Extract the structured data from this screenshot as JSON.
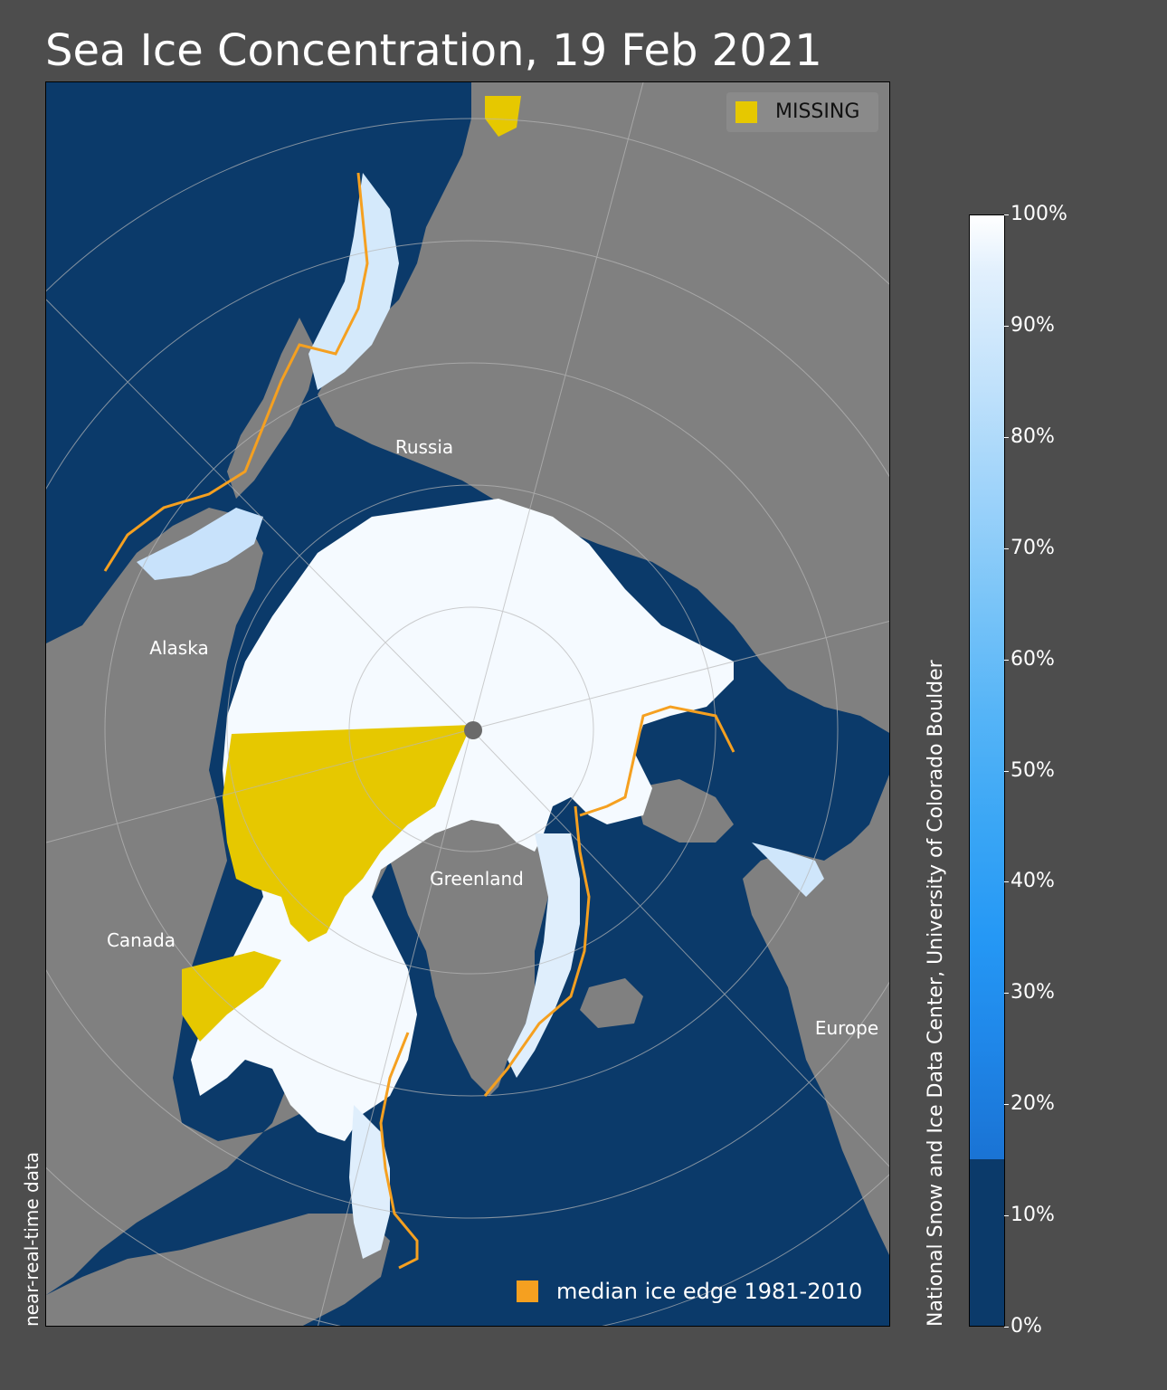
{
  "title": "Sea Ice Concentration, 19 Feb 2021",
  "side_label": "near-real-time data",
  "credit": "National Snow and Ice Data Center, University of Colorado Boulder",
  "regions": [
    {
      "id": "russia",
      "label": "Russia"
    },
    {
      "id": "alaska",
      "label": "Alaska"
    },
    {
      "id": "canada",
      "label": "Canada"
    },
    {
      "id": "greenland",
      "label": "Greenland"
    },
    {
      "id": "europe",
      "label": "Europe"
    }
  ],
  "legend": {
    "missing": {
      "label": "MISSING",
      "color": "#e6c800"
    },
    "median_edge": {
      "label": "median ice edge 1981-2010",
      "color": "#f5a020"
    }
  },
  "colorbar": {
    "ticks": [
      "0%",
      "10%",
      "20%",
      "30%",
      "40%",
      "50%",
      "60%",
      "70%",
      "80%",
      "90%",
      "100%"
    ],
    "min": 0,
    "max": 100,
    "ocean_threshold_percent": 15
  },
  "colors": {
    "background": "#4d4d4d",
    "land": "#808080",
    "ocean": "#0b3a6a",
    "ice": "#f5faff",
    "missing": "#e6c800",
    "median_edge": "#f5a020"
  }
}
